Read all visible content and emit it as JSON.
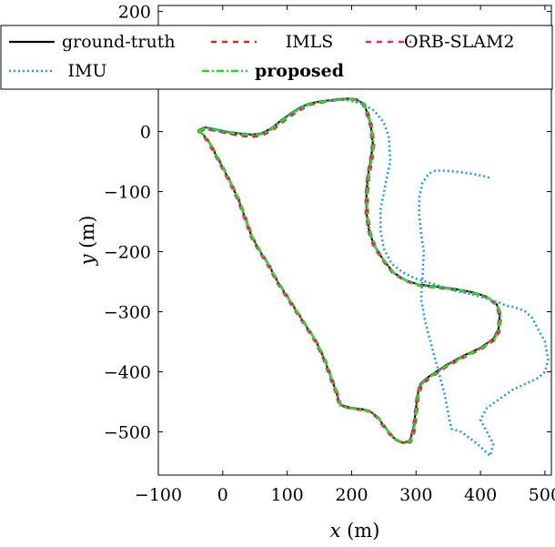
{
  "chart_data": {
    "type": "line",
    "title": "",
    "xlabel_var": "x",
    "xlabel_unit": " (m)",
    "ylabel_var": "y",
    "ylabel_unit": " (m)",
    "xlim": [
      -100,
      510
    ],
    "ylim": [
      -572,
      210
    ],
    "x_ticks": [
      -100,
      0,
      100,
      200,
      300,
      400,
      500
    ],
    "x_tick_labels": [
      "−100",
      "0",
      "100",
      "200",
      "300",
      "400",
      "500"
    ],
    "y_ticks": [
      200,
      0,
      -100,
      -200,
      -300,
      -400,
      -500
    ],
    "y_tick_labels": [
      "200",
      "0",
      "−100",
      "−200",
      "−300",
      "−400",
      "−500"
    ],
    "grid": false,
    "legend_position": "top-left",
    "series": [
      {
        "name": "ground-truth",
        "color": "#000000",
        "dash": "solid",
        "legend_bold": false,
        "x": [
          -38,
          -28,
          -12,
          5,
          25,
          45,
          60,
          75,
          90,
          105,
          120,
          135,
          150,
          165,
          180,
          195,
          208,
          218,
          223,
          230,
          233,
          230,
          225,
          223,
          223,
          227,
          235,
          250,
          265,
          285,
          305,
          330,
          360,
          390,
          410,
          425,
          430,
          428,
          420,
          400,
          370,
          345,
          320,
          307,
          302,
          300,
          298,
          295,
          290,
          280,
          265,
          250,
          240,
          228,
          215,
          200,
          182,
          175,
          168,
          158,
          145,
          130,
          115,
          100,
          85,
          70,
          58,
          45,
          35,
          25,
          12,
          0,
          -10,
          -20,
          -30,
          -38
        ],
        "y": [
          2,
          7,
          4,
          0,
          -3,
          -5,
          -3,
          5,
          18,
          30,
          40,
          47,
          50,
          52,
          54,
          55,
          53,
          47,
          35,
          10,
          -20,
          -45,
          -75,
          -105,
          -135,
          -165,
          -190,
          -215,
          -235,
          -248,
          -255,
          -258,
          -262,
          -268,
          -275,
          -287,
          -305,
          -330,
          -345,
          -360,
          -375,
          -390,
          -408,
          -420,
          -440,
          -460,
          -478,
          -500,
          -515,
          -518,
          -510,
          -490,
          -475,
          -465,
          -462,
          -460,
          -455,
          -430,
          -410,
          -380,
          -350,
          -325,
          -300,
          -275,
          -250,
          -220,
          -200,
          -175,
          -145,
          -115,
          -85,
          -60,
          -40,
          -20,
          -5,
          2
        ]
      },
      {
        "name": "IMLS",
        "color": "#e8241c",
        "dash": "6 6",
        "legend_bold": false,
        "x": [
          -36,
          -26,
          -10,
          7,
          27,
          47,
          62,
          77,
          92,
          107,
          122,
          137,
          152,
          167,
          182,
          197,
          210,
          220,
          225,
          232,
          235,
          232,
          227,
          225,
          225,
          229,
          237,
          252,
          267,
          287,
          307,
          332,
          362,
          392,
          412,
          427,
          432,
          430,
          422,
          402,
          372,
          347,
          322,
          309,
          304,
          302,
          300,
          297,
          292,
          282,
          267,
          252,
          242,
          230,
          217,
          202,
          184,
          177,
          170,
          160,
          147,
          132,
          117,
          102,
          87,
          72,
          60,
          47,
          37,
          27,
          14,
          2,
          -8,
          -18,
          -28,
          -36
        ],
        "y": [
          0,
          4,
          1,
          -3,
          -7,
          -9,
          -6,
          2,
          15,
          27,
          37,
          45,
          48,
          51,
          53,
          55,
          53,
          46,
          33,
          8,
          -22,
          -47,
          -77,
          -107,
          -137,
          -167,
          -192,
          -217,
          -237,
          -250,
          -257,
          -260,
          -264,
          -270,
          -277,
          -289,
          -307,
          -332,
          -347,
          -362,
          -377,
          -392,
          -410,
          -422,
          -442,
          -462,
          -480,
          -502,
          -517,
          -520,
          -512,
          -492,
          -477,
          -467,
          -464,
          -462,
          -457,
          -432,
          -412,
          -382,
          -352,
          -327,
          -302,
          -277,
          -252,
          -222,
          -202,
          -177,
          -147,
          -117,
          -87,
          -62,
          -42,
          -22,
          -7,
          0
        ]
      },
      {
        "name": "ORB-SLAM2",
        "color": "#e0248c",
        "dash": "6 6",
        "legend_bold": false,
        "x": [
          -39,
          -29,
          -13,
          4,
          24,
          44,
          59,
          74,
          89,
          104,
          119,
          134,
          149,
          164,
          179,
          194,
          207,
          217,
          222,
          229,
          232,
          229,
          224,
          222,
          222,
          226,
          234,
          249,
          264,
          284,
          304,
          329,
          359,
          389,
          409,
          424,
          429,
          427,
          419,
          399,
          369,
          344,
          319,
          306,
          301,
          299,
          297,
          294,
          289,
          279,
          264,
          249,
          239,
          227,
          214,
          199,
          181,
          174,
          167,
          157,
          144,
          129,
          114,
          99,
          84,
          69,
          57,
          44,
          34,
          24,
          11,
          -1,
          -11,
          -21,
          -31,
          -39
        ],
        "y": [
          1,
          5,
          2,
          -2,
          -5,
          -7,
          -5,
          3,
          16,
          28,
          38,
          46,
          49,
          51,
          53,
          54,
          52,
          46,
          34,
          9,
          -21,
          -46,
          -76,
          -106,
          -136,
          -166,
          -191,
          -216,
          -236,
          -249,
          -256,
          -259,
          -263,
          -269,
          -276,
          -288,
          -306,
          -331,
          -346,
          -361,
          -376,
          -391,
          -409,
          -421,
          -441,
          -461,
          -479,
          -501,
          -516,
          -519,
          -511,
          -491,
          -476,
          -466,
          -463,
          -461,
          -456,
          -431,
          -411,
          -381,
          -351,
          -326,
          -301,
          -276,
          -251,
          -221,
          -201,
          -176,
          -146,
          -116,
          -86,
          -61,
          -41,
          -21,
          -6,
          1
        ]
      },
      {
        "name": "IMU",
        "color": "#1ba1d6",
        "dash": "2 3",
        "legend_bold": false,
        "x": [
          -38,
          -28,
          -12,
          5,
          25,
          45,
          60,
          75,
          90,
          105,
          120,
          135,
          150,
          165,
          180,
          195,
          215,
          235,
          250,
          258,
          260,
          252,
          245,
          245,
          250,
          262,
          280,
          300,
          330,
          360,
          390,
          415,
          430,
          440,
          450,
          460,
          470,
          480,
          490,
          500,
          505,
          500,
          490,
          470,
          450,
          430,
          410,
          400,
          410,
          420,
          415,
          395,
          370,
          355,
          350,
          345,
          335,
          325,
          315,
          308,
          310,
          312,
          308,
          305,
          305,
          310,
          320,
          330,
          345,
          365,
          385,
          410,
          415
        ],
        "y": [
          2,
          7,
          4,
          0,
          -3,
          -5,
          -3,
          5,
          18,
          30,
          40,
          47,
          50,
          52,
          53,
          52,
          47,
          35,
          15,
          -10,
          -50,
          -90,
          -130,
          -165,
          -195,
          -220,
          -235,
          -245,
          -255,
          -265,
          -272,
          -280,
          -285,
          -290,
          -292,
          -295,
          -300,
          -310,
          -330,
          -350,
          -380,
          -400,
          -410,
          -420,
          -430,
          -445,
          -460,
          -480,
          -500,
          -520,
          -540,
          -520,
          -500,
          -495,
          -470,
          -440,
          -400,
          -360,
          -320,
          -280,
          -240,
          -200,
          -170,
          -140,
          -110,
          -85,
          -70,
          -65,
          -65,
          -67,
          -70,
          -75,
          -78
        ]
      },
      {
        "name": "proposed",
        "color": "#22dd22",
        "dash": "8 3 2 3",
        "legend_bold": true,
        "x": [
          -37,
          -27,
          -11,
          6,
          26,
          46,
          61,
          76,
          91,
          106,
          121,
          136,
          151,
          166,
          181,
          196,
          209,
          219,
          224,
          231,
          234,
          231,
          226,
          224,
          224,
          228,
          236,
          251,
          266,
          286,
          306,
          331,
          361,
          391,
          411,
          426,
          431,
          429,
          421,
          401,
          371,
          346,
          321,
          308,
          303,
          301,
          299,
          296,
          291,
          281,
          266,
          251,
          241,
          229,
          216,
          201,
          183,
          176,
          169,
          159,
          146,
          131,
          116,
          101,
          86,
          71,
          59,
          46,
          36,
          26,
          13,
          1,
          -9,
          -19,
          -29,
          -37
        ],
        "y": [
          1,
          6,
          3,
          -1,
          -4,
          -6,
          -4,
          4,
          17,
          29,
          39,
          46,
          49,
          51,
          53,
          54,
          52,
          46,
          34,
          9,
          -21,
          -46,
          -76,
          -106,
          -136,
          -166,
          -191,
          -216,
          -236,
          -249,
          -256,
          -259,
          -263,
          -269,
          -276,
          -288,
          -306,
          -331,
          -346,
          -361,
          -376,
          -391,
          -409,
          -421,
          -441,
          -461,
          -479,
          -501,
          -516,
          -519,
          -511,
          -491,
          -476,
          -466,
          -463,
          -461,
          -456,
          -431,
          -411,
          -381,
          -351,
          -326,
          -301,
          -276,
          -251,
          -221,
          -201,
          -176,
          -146,
          -116,
          -86,
          -61,
          -41,
          -21,
          -6,
          1
        ]
      }
    ]
  }
}
